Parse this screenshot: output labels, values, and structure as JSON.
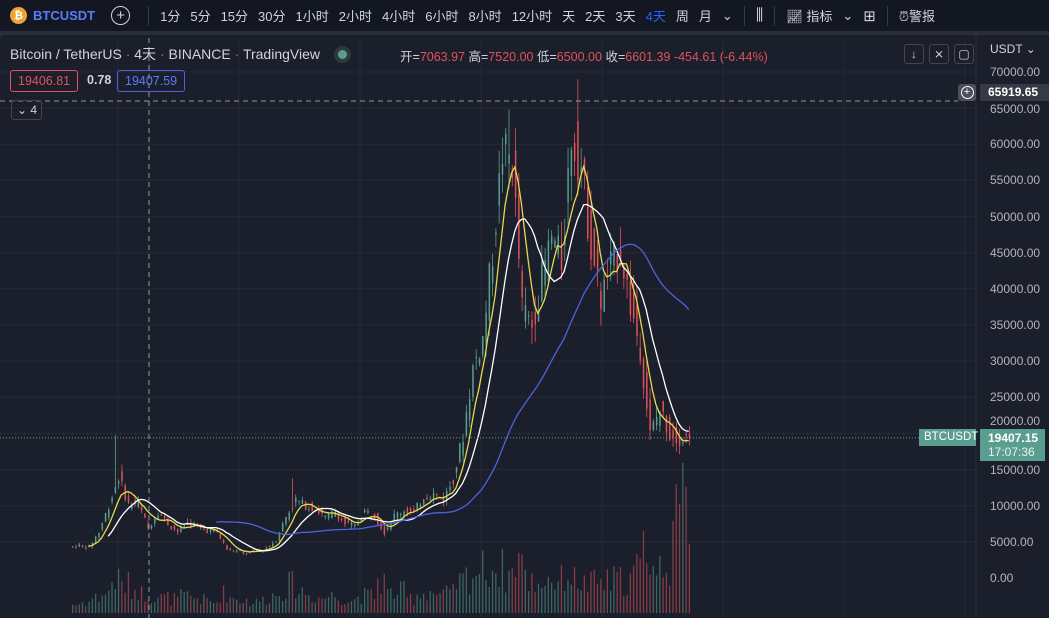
{
  "toolbar": {
    "symbol": "BTCUSDT",
    "coin_glyph": "₿",
    "intervals": [
      "1分",
      "5分",
      "15分",
      "30分",
      "1小时",
      "2小时",
      "4小时",
      "6小时",
      "8小时",
      "12小时",
      "天",
      "2天",
      "3天",
      "4天",
      "周",
      "月"
    ],
    "active_interval": "4天",
    "indicators": "指标",
    "alerts": "警报"
  },
  "legend": {
    "pair": "Bitcoin / TetherUS",
    "interval": "4天",
    "exchange": "BINANCE",
    "source": "TradingView",
    "open_label": "开=",
    "open": "7063.97",
    "high_label": "高=",
    "high": "7520.00",
    "low_label": "低=",
    "low": "6500.00",
    "close_label": "收=",
    "close": "6601.39",
    "change": "-454.61 (-6.44%)",
    "bid": "19406.81",
    "spread": "0.78",
    "ask": "19407.59",
    "collapsed_count": "4"
  },
  "axis": {
    "currency": "USDT",
    "crosshair_price": "65919.65",
    "last_symbol": "BTCUSDT",
    "last_price": "19407.15",
    "countdown": "17:07:36"
  },
  "colors": {
    "up": "#5a9e8f",
    "down": "#e0525a",
    "ma_fast": "#e8d94a",
    "ma_mid": "#ffffff",
    "ma_slow": "#4a63e0",
    "bg": "#1b1f2b"
  },
  "chart_data": {
    "type": "candlestick",
    "ylim": [
      0,
      70000
    ],
    "yticks": [
      "70000.00",
      "65000.00",
      "60000.00",
      "55000.00",
      "50000.00",
      "45000.00",
      "40000.00",
      "35000.00",
      "30000.00",
      "25000.00",
      "20000.00",
      "15000.00",
      "10000.00",
      "5000.00",
      "0.00"
    ],
    "monthly_close": [
      4500,
      4300,
      6400,
      10000,
      14000,
      10200,
      10300,
      6900,
      9200,
      7500,
      6400,
      7700,
      7000,
      6600,
      6300,
      4000,
      3700,
      3400,
      3800,
      4100,
      5300,
      8500,
      10800,
      10000,
      9600,
      8300,
      9200,
      7500,
      7200,
      9300,
      8500,
      6400,
      8600,
      9400,
      9100,
      11300,
      11600,
      10800,
      13800,
      19700,
      29000,
      33100,
      45200,
      58800,
      57700,
      37300,
      35000,
      41500,
      47100,
      43800,
      61300,
      57000,
      46200,
      38500,
      43200,
      45500,
      37700,
      31800,
      19900,
      23300,
      20000,
      19400,
      19407
    ],
    "peak_highs": {
      "4": 19800,
      "22": 13800,
      "44": 64800,
      "51": 69000
    },
    "monthly_volume": [
      8,
      10,
      14,
      18,
      30,
      26,
      22,
      18,
      16,
      14,
      13,
      15,
      14,
      12,
      10,
      18,
      14,
      12,
      10,
      12,
      16,
      22,
      26,
      20,
      16,
      14,
      16,
      14,
      12,
      16,
      16,
      30,
      18,
      20,
      14,
      18,
      20,
      16,
      18,
      28,
      34,
      40,
      42,
      40,
      36,
      52,
      30,
      28,
      32,
      30,
      36,
      30,
      26,
      28,
      28,
      30,
      30,
      40,
      60,
      40,
      50,
      80,
      100
    ]
  }
}
